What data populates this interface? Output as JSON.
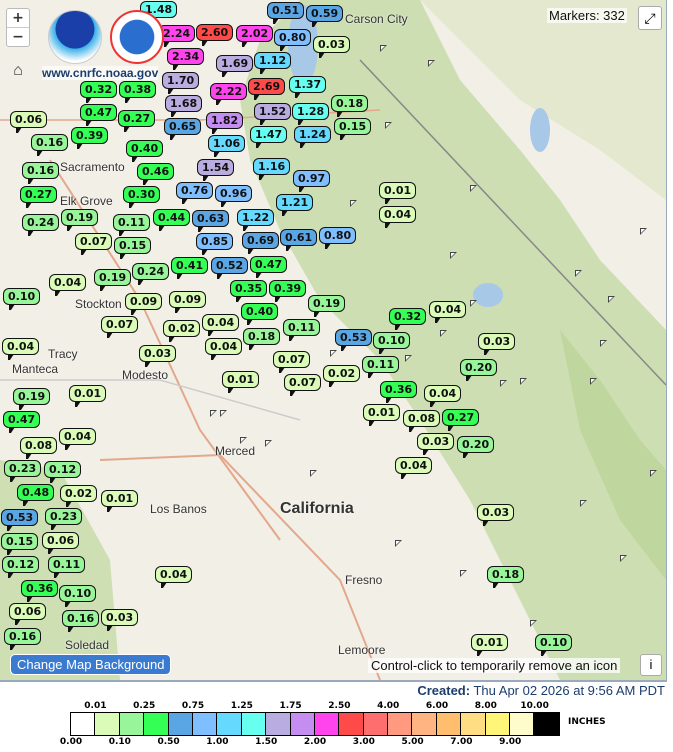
{
  "map": {
    "markers_label": "Markers: 332",
    "zoom_in": "+",
    "zoom_out": "−",
    "logo_text": "www.cnrfc.noaa.gov",
    "logos": [
      "NOAA",
      "NATIONAL WEATHER SERVICE"
    ],
    "change_bg_button": "Change Map Background",
    "hint": "Control-click to temporarily remove an icon",
    "info_button": "i",
    "icons": {
      "home": "home-icon",
      "fullscreen": "expand-icon",
      "flag": "flag-icon"
    },
    "places": [
      "Carson City",
      "Elk Grove",
      "Sacramento",
      "Stockton",
      "Tracy",
      "Modesto",
      "Merced",
      "Los Banos",
      "California",
      "Fresno",
      "Soledad",
      "Lemoore",
      "Manteca"
    ],
    "markers": [
      "0.51",
      "1.48",
      "2.24",
      "2.34",
      "2.60",
      "2.02",
      "0.80",
      "1.12",
      "0.03",
      "0.59",
      "1.69",
      "2.69",
      "2.22",
      "1.70",
      "1.68",
      "1.37",
      "1.52",
      "1.82",
      "1.47",
      "1.28",
      "1.24",
      "0.18",
      "0.65",
      "1.06",
      "1.54",
      "0.15",
      "0.32",
      "0.38",
      "0.47",
      "0.39",
      "0.27",
      "0.40",
      "0.46",
      "0.16",
      "0.16",
      "0.27",
      "0.06",
      "0.19",
      "0.76",
      "1.16",
      "0.97",
      "0.96",
      "0.30",
      "0.44",
      "0.63",
      "0.85",
      "1.22",
      "1.21",
      "0.69",
      "0.52",
      "0.47",
      "0.35",
      "0.41",
      "0.40",
      "0.39",
      "0.61",
      "0.80",
      "0.01",
      "0.04",
      "0.24",
      "0.07",
      "0.11",
      "0.15",
      "0.24",
      "0.19",
      "0.10",
      "0.04",
      "0.09",
      "0.09",
      "0.04",
      "0.07",
      "0.02",
      "0.04",
      "0.18",
      "0.11",
      "0.19",
      "0.53",
      "0.10",
      "0.32",
      "0.04",
      "0.03",
      "0.07",
      "0.07",
      "0.02",
      "0.11",
      "0.36",
      "0.03",
      "0.20",
      "0.01",
      "0.01",
      "0.01",
      "0.08",
      "0.03",
      "0.04",
      "0.27",
      "0.20",
      "0.04",
      "0.08",
      "0.47",
      "0.19",
      "0.04",
      "0.23",
      "0.48",
      "0.12",
      "0.53",
      "0.23",
      "0.02",
      "0.01",
      "0.04",
      "0.03",
      "0.15",
      "0.12",
      "0.06",
      "0.11",
      "0.36",
      "0.06",
      "0.04",
      "0.18",
      "0.16",
      "0.16",
      "0.03",
      "0.10",
      "0.01",
      "0.10"
    ]
  },
  "created": {
    "label": "Created:",
    "value": "Thu Apr 02 2026 at 9:56 AM PDT"
  },
  "legend": {
    "units": "INCHES",
    "colors": [
      "#ffffff",
      "#dafcb8",
      "#99f59a",
      "#33ff55",
      "#5aa5e4",
      "#80bfff",
      "#66d9ff",
      "#66fff0",
      "#b8ace0",
      "#c58df0",
      "#ff44ee",
      "#ff4a4a",
      "#ff6e6e",
      "#ff9a80",
      "#ffb482",
      "#ffbe6e",
      "#ffdd82",
      "#fff578",
      "#fffccc",
      "#000000"
    ],
    "top_labels": [
      "0.01",
      "0.25",
      "0.75",
      "1.25",
      "1.75",
      "2.50",
      "4.00",
      "6.00",
      "8.00",
      "10.00"
    ],
    "bottom_labels": [
      "0.00",
      "0.10",
      "0.50",
      "1.00",
      "1.50",
      "2.00",
      "3.00",
      "5.00",
      "7.00",
      "9.00"
    ],
    "thresholds": [
      0,
      0.01,
      0.1,
      0.25,
      0.5,
      0.75,
      1,
      1.25,
      1.5,
      1.75,
      2,
      2.5,
      3,
      4,
      5,
      6,
      7,
      8,
      9,
      10
    ]
  }
}
